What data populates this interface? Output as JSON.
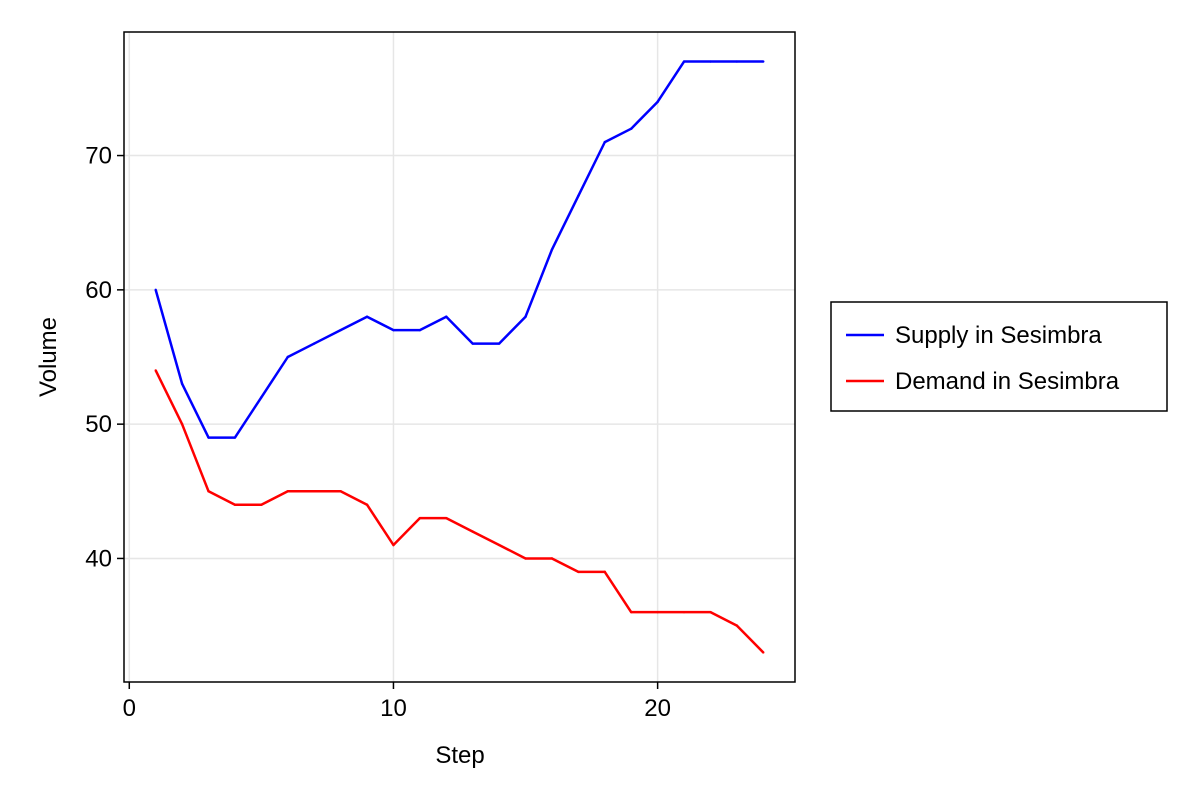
{
  "chart_data": {
    "type": "line",
    "xlabel": "Step",
    "ylabel": "Volume",
    "xlim": [
      -0.2,
      25.2
    ],
    "ylim": [
      30.8,
      79.2
    ],
    "x_ticks": [
      0,
      10,
      20
    ],
    "y_ticks": [
      40,
      50,
      60,
      70
    ],
    "grid": true,
    "legend_position": "right",
    "x": [
      1,
      2,
      3,
      4,
      5,
      6,
      7,
      8,
      9,
      10,
      11,
      12,
      13,
      14,
      15,
      16,
      17,
      18,
      19,
      20,
      21,
      22,
      23,
      24
    ],
    "series": [
      {
        "name": "Supply in Sesimbra",
        "color": "#0000ff",
        "values": [
          60,
          53,
          49,
          49,
          52,
          55,
          56,
          57,
          58,
          57,
          57,
          58,
          56,
          56,
          58,
          63,
          67,
          71,
          72,
          74,
          77,
          77,
          77,
          77
        ]
      },
      {
        "name": "Demand in Sesimbra",
        "color": "#ff0000",
        "values": [
          54,
          50,
          45,
          44,
          44,
          45,
          45,
          45,
          44,
          41,
          43,
          43,
          42,
          41,
          40,
          40,
          39,
          39,
          36,
          36,
          36,
          36,
          35,
          33
        ]
      }
    ]
  }
}
